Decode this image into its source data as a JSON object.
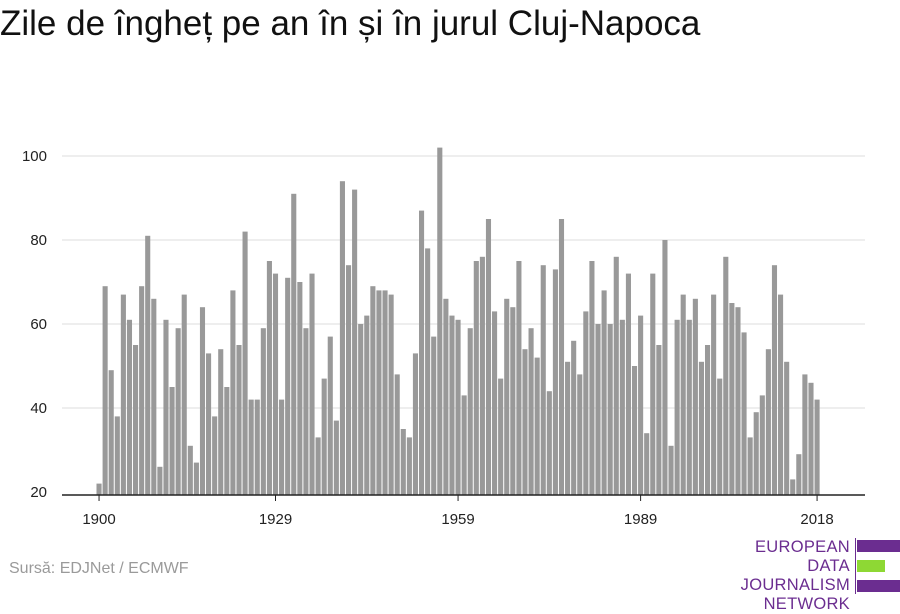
{
  "title": "Zile de îngheț pe an în și în jurul Cluj-Napoca",
  "source": "Sursă: EDJNet / ECMWF",
  "logo": {
    "lines": [
      "EUROPEAN",
      "DATA JOURNALISM",
      "NETWORK"
    ],
    "colors": {
      "purple": "#6b2d90",
      "green": "#8ed834"
    }
  },
  "colors": {
    "bar": "#999999",
    "grid": "#dddddd",
    "axis": "#222222"
  },
  "chart_data": {
    "type": "bar",
    "title": "Zile de îngheț pe an în și în jurul Cluj-Napoca",
    "xlabel": "",
    "ylabel": "",
    "x_range": [
      1900,
      2018
    ],
    "ylim": [
      20,
      105
    ],
    "y_ticks": [
      20,
      40,
      60,
      80,
      100
    ],
    "x_ticks": [
      1900,
      1929,
      1959,
      1989,
      2018
    ],
    "grid": true,
    "years": [
      1900,
      1901,
      1902,
      1903,
      1904,
      1905,
      1906,
      1907,
      1908,
      1909,
      1910,
      1911,
      1912,
      1913,
      1914,
      1915,
      1916,
      1917,
      1918,
      1919,
      1920,
      1921,
      1922,
      1923,
      1924,
      1925,
      1926,
      1927,
      1928,
      1929,
      1930,
      1931,
      1932,
      1933,
      1934,
      1935,
      1936,
      1937,
      1938,
      1939,
      1940,
      1941,
      1942,
      1943,
      1944,
      1945,
      1946,
      1947,
      1948,
      1949,
      1950,
      1951,
      1952,
      1953,
      1954,
      1955,
      1956,
      1957,
      1958,
      1959,
      1960,
      1961,
      1962,
      1963,
      1964,
      1965,
      1966,
      1967,
      1968,
      1969,
      1970,
      1971,
      1972,
      1973,
      1974,
      1975,
      1976,
      1977,
      1978,
      1979,
      1980,
      1981,
      1982,
      1983,
      1984,
      1985,
      1986,
      1987,
      1988,
      1989,
      1990,
      1991,
      1992,
      1993,
      1994,
      1995,
      1996,
      1997,
      1998,
      1999,
      2000,
      2001,
      2002,
      2003,
      2004,
      2005,
      2006,
      2007,
      2008,
      2009,
      2010,
      2011,
      2012,
      2013,
      2014,
      2015,
      2016,
      2017,
      2018
    ],
    "values": [
      22,
      69,
      49,
      38,
      67,
      61,
      55,
      69,
      81,
      66,
      26,
      61,
      45,
      59,
      67,
      31,
      27,
      64,
      53,
      38,
      54,
      45,
      68,
      55,
      82,
      42,
      42,
      59,
      75,
      72,
      42,
      71,
      91,
      70,
      59,
      72,
      33,
      47,
      57,
      37,
      94,
      74,
      92,
      60,
      62,
      69,
      68,
      68,
      67,
      48,
      35,
      33,
      53,
      87,
      78,
      57,
      102,
      66,
      62,
      61,
      43,
      59,
      75,
      76,
      85,
      63,
      47,
      66,
      64,
      75,
      54,
      59,
      52,
      74,
      44,
      73,
      85,
      51,
      56,
      48,
      63,
      75,
      60,
      68,
      60,
      76,
      61,
      72,
      50,
      62,
      34,
      72,
      55,
      80,
      31,
      61,
      67,
      61,
      66,
      51,
      55,
      67,
      47,
      76,
      65,
      64,
      58,
      33,
      39,
      43,
      54,
      74,
      67,
      51,
      23,
      29,
      48,
      46,
      42
    ]
  }
}
